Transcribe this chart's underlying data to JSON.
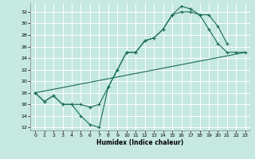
{
  "xlabel": "Humidex (Indice chaleur)",
  "bg_color": "#c5e8e0",
  "grid_color": "#ffffff",
  "line_color": "#1a6b5a",
  "xlim": [
    -0.5,
    23.5
  ],
  "ylim": [
    11.5,
    33.5
  ],
  "xticks": [
    0,
    1,
    2,
    3,
    4,
    5,
    6,
    7,
    8,
    9,
    10,
    11,
    12,
    13,
    14,
    15,
    16,
    17,
    18,
    19,
    20,
    21,
    22,
    23
  ],
  "yticks": [
    12,
    14,
    16,
    18,
    20,
    22,
    24,
    26,
    28,
    30,
    32
  ],
  "line1_x": [
    0,
    1,
    2,
    3,
    4,
    5,
    6,
    7,
    8,
    9,
    10,
    11,
    12,
    13,
    14,
    15,
    16,
    17,
    18,
    19,
    20,
    21,
    22,
    23
  ],
  "line1_y": [
    18,
    16.5,
    17.5,
    16,
    16,
    16,
    15.5,
    16,
    19,
    22,
    25,
    25,
    27,
    27.5,
    29,
    31.5,
    32,
    32,
    31.5,
    29,
    26.5,
    25,
    25,
    25
  ],
  "line2_x": [
    0,
    1,
    2,
    3,
    4,
    5,
    6,
    7,
    8,
    9,
    10,
    11,
    12,
    13,
    14,
    15,
    16,
    17,
    18,
    19,
    20,
    21
  ],
  "line2_y": [
    18,
    16.5,
    17.5,
    16,
    16,
    14,
    12.5,
    12,
    19,
    22,
    25,
    25,
    27,
    27.5,
    29,
    31.5,
    33,
    32.5,
    31.5,
    31.5,
    29.5,
    26.5
  ],
  "line3_x": [
    0,
    23
  ],
  "line3_y": [
    18,
    25
  ]
}
